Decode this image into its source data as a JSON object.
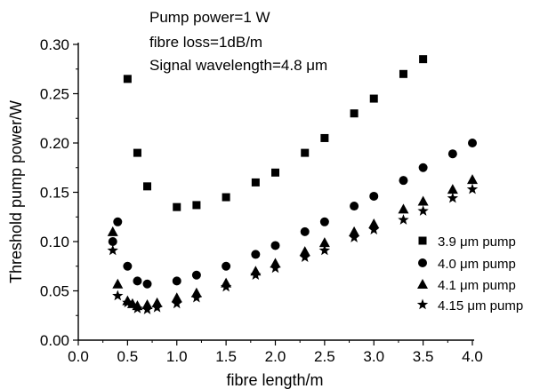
{
  "chart_data": {
    "type": "scatter",
    "annotations": [
      "Pump power=1 W",
      "fibre loss=1dB/m",
      "Signal wavelength=4.8 μm"
    ],
    "xlabel": "fibre length/m",
    "ylabel": "Threshold pump power/W",
    "xlim": [
      0.0,
      4.0
    ],
    "ylim": [
      0.0,
      0.3
    ],
    "x_ticks": [
      "0.0",
      "0.5",
      "1.0",
      "1.5",
      "2.0",
      "2.5",
      "3.0",
      "3.5",
      "4.0"
    ],
    "y_ticks": [
      "0.00",
      "0.05",
      "0.10",
      "0.15",
      "0.20",
      "0.25",
      "0.30"
    ],
    "grid": false,
    "legend_position": "lower-right",
    "series": [
      {
        "name": "3.9 μm pump",
        "marker": "square",
        "x": [
          0.5,
          0.6,
          0.7,
          1.0,
          1.2,
          1.5,
          1.8,
          2.0,
          2.3,
          2.5,
          2.8,
          3.0,
          3.3,
          3.5
        ],
        "y": [
          0.265,
          0.19,
          0.156,
          0.135,
          0.137,
          0.145,
          0.16,
          0.17,
          0.19,
          0.205,
          0.23,
          0.245,
          0.27,
          0.285
        ]
      },
      {
        "name": "4.0 μm pump",
        "marker": "circle",
        "x": [
          0.35,
          0.4,
          0.5,
          0.6,
          0.7,
          1.0,
          1.2,
          1.5,
          1.8,
          2.0,
          2.3,
          2.5,
          2.8,
          3.0,
          3.3,
          3.5,
          3.8,
          4.0
        ],
        "y": [
          0.1,
          0.12,
          0.075,
          0.06,
          0.057,
          0.06,
          0.066,
          0.075,
          0.087,
          0.096,
          0.11,
          0.12,
          0.136,
          0.146,
          0.162,
          0.175,
          0.189,
          0.2
        ]
      },
      {
        "name": "4.1 μm pump",
        "marker": "triangle",
        "x": [
          0.35,
          0.4,
          0.5,
          0.55,
          0.6,
          0.7,
          0.8,
          1.0,
          1.2,
          1.5,
          1.8,
          2.0,
          2.3,
          2.5,
          2.8,
          3.0,
          3.3,
          3.5,
          3.8,
          4.0
        ],
        "y": [
          0.11,
          0.057,
          0.04,
          0.037,
          0.035,
          0.036,
          0.038,
          0.043,
          0.048,
          0.058,
          0.07,
          0.078,
          0.09,
          0.099,
          0.11,
          0.118,
          0.133,
          0.141,
          0.153,
          0.163
        ]
      },
      {
        "name": "4.15 μm pump",
        "marker": "star",
        "x": [
          0.35,
          0.4,
          0.5,
          0.6,
          0.7,
          0.8,
          1.0,
          1.2,
          1.5,
          1.8,
          2.0,
          2.3,
          2.5,
          2.8,
          3.0,
          3.3,
          3.5,
          3.8,
          4.0
        ],
        "y": [
          0.091,
          0.045,
          0.038,
          0.032,
          0.031,
          0.033,
          0.037,
          0.043,
          0.054,
          0.066,
          0.073,
          0.084,
          0.091,
          0.104,
          0.112,
          0.122,
          0.131,
          0.144,
          0.153
        ]
      }
    ]
  }
}
